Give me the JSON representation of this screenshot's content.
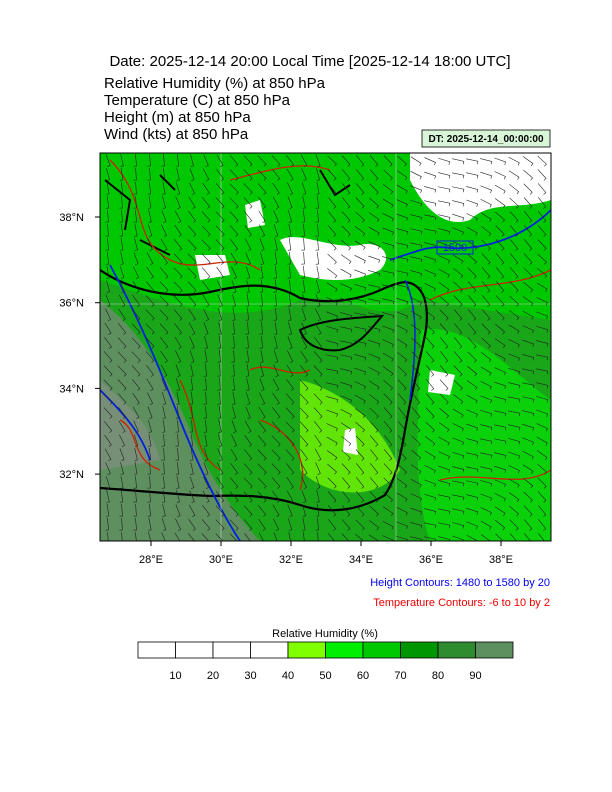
{
  "header": {
    "title": "Date: 2025-12-14  20:00 Local Time [2025-12-14  18:00 UTC]",
    "lines": [
      "Relative Humidity   (%)    at   850 hPa",
      "Temperature   (C)     at   850 hPa",
      "Height   (m)     at   850 hPa",
      "Wind   (kts)     at   850 hPa"
    ]
  },
  "dt_label": "DT: 2025-12-14_00:00:00",
  "map": {
    "lat_labels": [
      "38°N",
      "36°N",
      "34°N",
      "32°N"
    ],
    "lon_labels": [
      "28°E",
      "30°E",
      "32°E",
      "34°E",
      "36°E",
      "38°E"
    ],
    "contour_label": "1500"
  },
  "notes": [
    "Height Contours: 1480 to 1580 by 20",
    "Temperature Contours: -6 to 10 by 2"
  ],
  "colorbar": {
    "title": "Relative Humidity  (%)",
    "labels": [
      "10",
      "20",
      "30",
      "40",
      "50",
      "60",
      "70",
      "80",
      "90"
    ],
    "colors": [
      "#ffffff",
      "#ffffff",
      "#ffffff",
      "#ffffff",
      "#80ff00",
      "#00ee00",
      "#00c800",
      "#009600",
      "#2e8b2e",
      "#5e8f5e"
    ]
  }
}
